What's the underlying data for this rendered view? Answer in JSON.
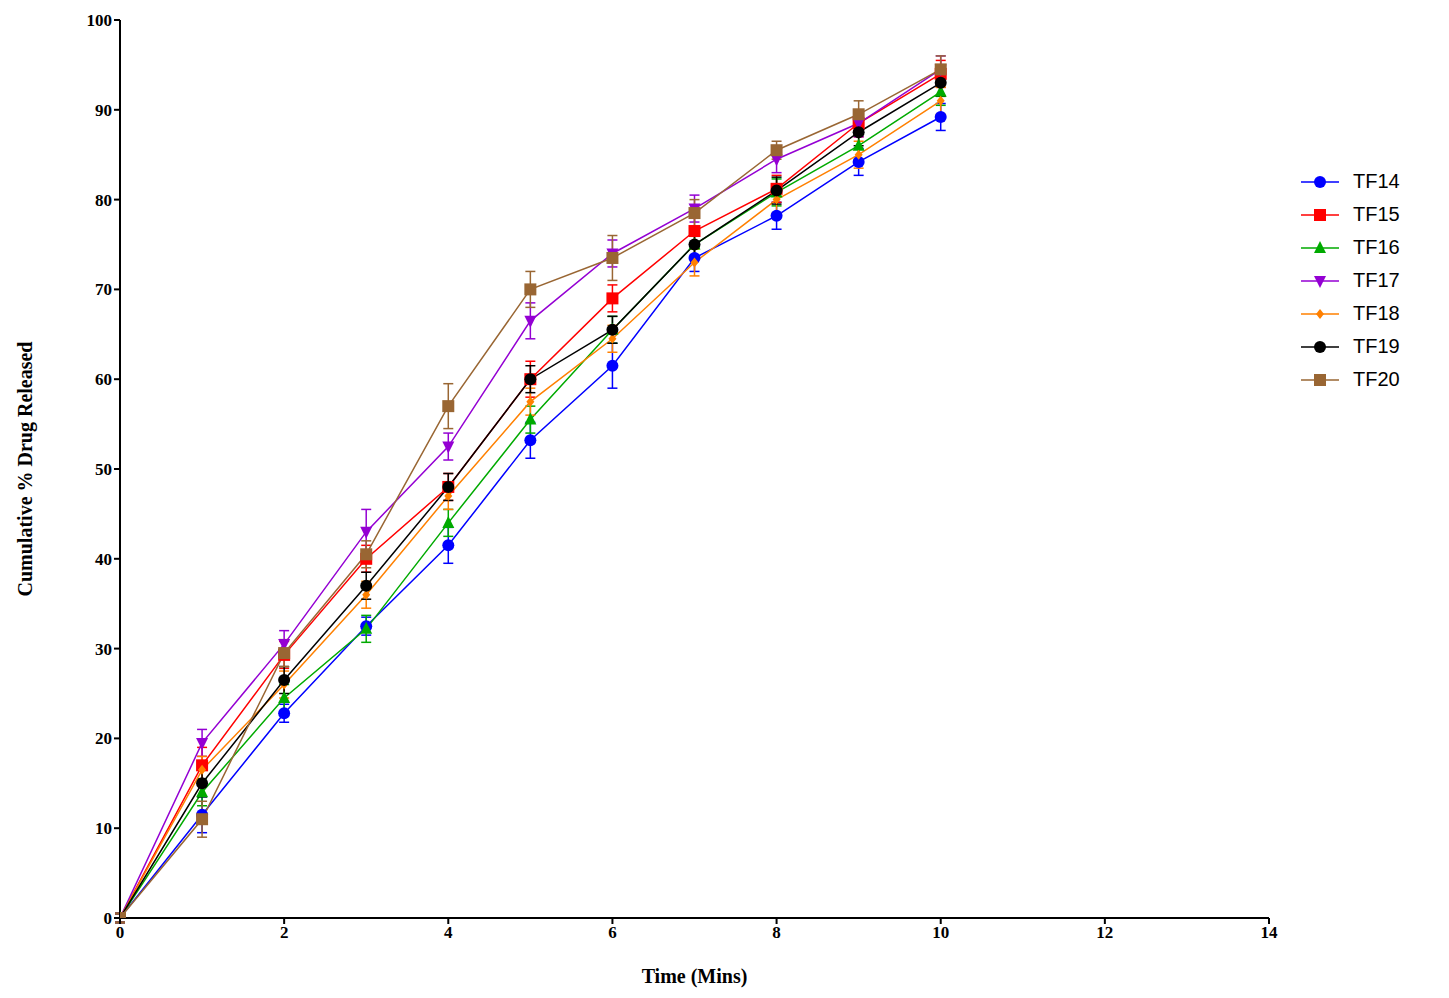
{
  "chart_data": {
    "type": "line",
    "x_label": "Time (Mins)",
    "y_label": "Cumulative % Drug Released",
    "x": [
      0,
      1,
      2,
      3,
      4,
      5,
      6,
      7,
      8,
      9,
      10
    ],
    "xlim": [
      0,
      14
    ],
    "xticks": [
      0,
      2,
      4,
      6,
      8,
      10,
      12,
      14
    ],
    "ylim": [
      0,
      100
    ],
    "yticks": [
      0,
      10,
      20,
      30,
      40,
      50,
      60,
      70,
      80,
      90,
      100
    ],
    "grid": false,
    "legend": "right",
    "series": [
      {
        "name": "TF14",
        "color": "#0000ff",
        "marker": "circle",
        "values": [
          0,
          11.5,
          22.8,
          32.5,
          41.5,
          53.2,
          61.5,
          73.5,
          78.2,
          84.2,
          89.2
        ],
        "errors": [
          0.5,
          2,
          1,
          1,
          2,
          2,
          2.5,
          1.5,
          1.5,
          1.5,
          1.5
        ]
      },
      {
        "name": "TF15",
        "color": "#ff0000",
        "marker": "square",
        "values": [
          0,
          17,
          29.3,
          40,
          48,
          60,
          69,
          76.5,
          81.2,
          88.5,
          94
        ],
        "errors": [
          0.5,
          2,
          1.5,
          1.5,
          1.5,
          2,
          1.5,
          1.5,
          1.5,
          1.5,
          1.5
        ]
      },
      {
        "name": "TF16",
        "color": "#00aa00",
        "marker": "triangle",
        "values": [
          0,
          14,
          24.5,
          32.2,
          44,
          55.5,
          65.5,
          75,
          80.8,
          86,
          92
        ],
        "errors": [
          0.5,
          1.5,
          1.5,
          1.5,
          1.5,
          1.5,
          1.5,
          1.5,
          1.5,
          1.5,
          1.5
        ]
      },
      {
        "name": "TF17",
        "color": "#9400d3",
        "marker": "triangle-down",
        "values": [
          0,
          19.5,
          30.5,
          43,
          52.5,
          66.5,
          74,
          79,
          84.5,
          88.5,
          94.5
        ],
        "errors": [
          0.5,
          1.5,
          1.5,
          2.5,
          1.5,
          2,
          1.5,
          1.5,
          1.5,
          1.5,
          1.5
        ]
      },
      {
        "name": "TF18",
        "color": "#ff8000",
        "marker": "diamond",
        "values": [
          0,
          16.5,
          26,
          36,
          47,
          57.5,
          64.5,
          73,
          80,
          85,
          91
        ],
        "errors": [
          0.5,
          1.5,
          1.5,
          1.5,
          1.5,
          1.5,
          1.5,
          1.5,
          1.5,
          1.5,
          1.5
        ]
      },
      {
        "name": "TF19",
        "color": "#000000",
        "marker": "circle",
        "values": [
          0,
          15,
          26.5,
          37,
          48,
          60,
          65.5,
          75,
          81,
          87.5,
          93
        ],
        "errors": [
          0.5,
          1.5,
          1.5,
          1.5,
          1.5,
          1.5,
          1.5,
          1.5,
          1.5,
          1.5,
          1.5
        ]
      },
      {
        "name": "TF20",
        "color": "#996633",
        "marker": "square",
        "values": [
          0,
          11,
          29.5,
          40.5,
          57,
          70,
          73.5,
          78.5,
          85.5,
          89.5,
          94.5
        ],
        "errors": [
          0.5,
          2,
          1.5,
          1.5,
          2.5,
          2,
          2.5,
          1.5,
          1,
          1.5,
          1.5
        ]
      }
    ]
  }
}
